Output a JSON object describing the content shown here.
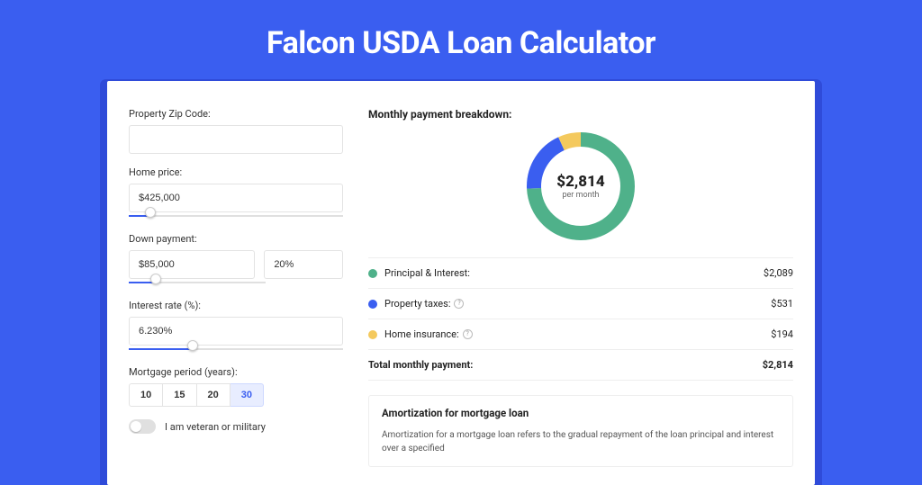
{
  "title": "Falcon USDA Loan Calculator",
  "colors": {
    "page_bg": "#3a5ef0",
    "card_shadow": "#2f4bd9",
    "accent": "#3a5ef0"
  },
  "inputs": {
    "zip": {
      "label": "Property Zip Code:",
      "value": ""
    },
    "home_price": {
      "label": "Home price:",
      "value": "$425,000",
      "slider_pct": 10
    },
    "down_payment": {
      "label": "Down payment:",
      "amount": "$85,000",
      "pct": "20%",
      "slider_pct": 20
    },
    "interest_rate": {
      "label": "Interest rate (%):",
      "value": "6.230%",
      "slider_pct": 30
    },
    "mortgage_period": {
      "label": "Mortgage period (years):",
      "options": [
        "10",
        "15",
        "20",
        "30"
      ],
      "selected": "30"
    },
    "veteran": {
      "label": "I am veteran or military",
      "on": false
    }
  },
  "breakdown": {
    "title": "Monthly payment breakdown:",
    "center_amount": "$2,814",
    "center_sub": "per month",
    "donut": {
      "radius": 52,
      "thickness": 16,
      "slices": [
        {
          "key": "pi",
          "color": "#4fb18a",
          "pct": 74.2
        },
        {
          "key": "tax",
          "color": "#3a5ef0",
          "pct": 18.9
        },
        {
          "key": "ins",
          "color": "#f4c95d",
          "pct": 6.9
        }
      ]
    },
    "items": [
      {
        "key": "pi",
        "label": "Principal & Interest:",
        "value": "$2,089",
        "color": "#4fb18a",
        "info": false
      },
      {
        "key": "tax",
        "label": "Property taxes:",
        "value": "$531",
        "color": "#3a5ef0",
        "info": true
      },
      {
        "key": "ins",
        "label": "Home insurance:",
        "value": "$194",
        "color": "#f4c95d",
        "info": true
      }
    ],
    "total": {
      "label": "Total monthly payment:",
      "value": "$2,814"
    }
  },
  "amortization": {
    "title": "Amortization for mortgage loan",
    "body": "Amortization for a mortgage loan refers to the gradual repayment of the loan principal and interest over a specified"
  }
}
